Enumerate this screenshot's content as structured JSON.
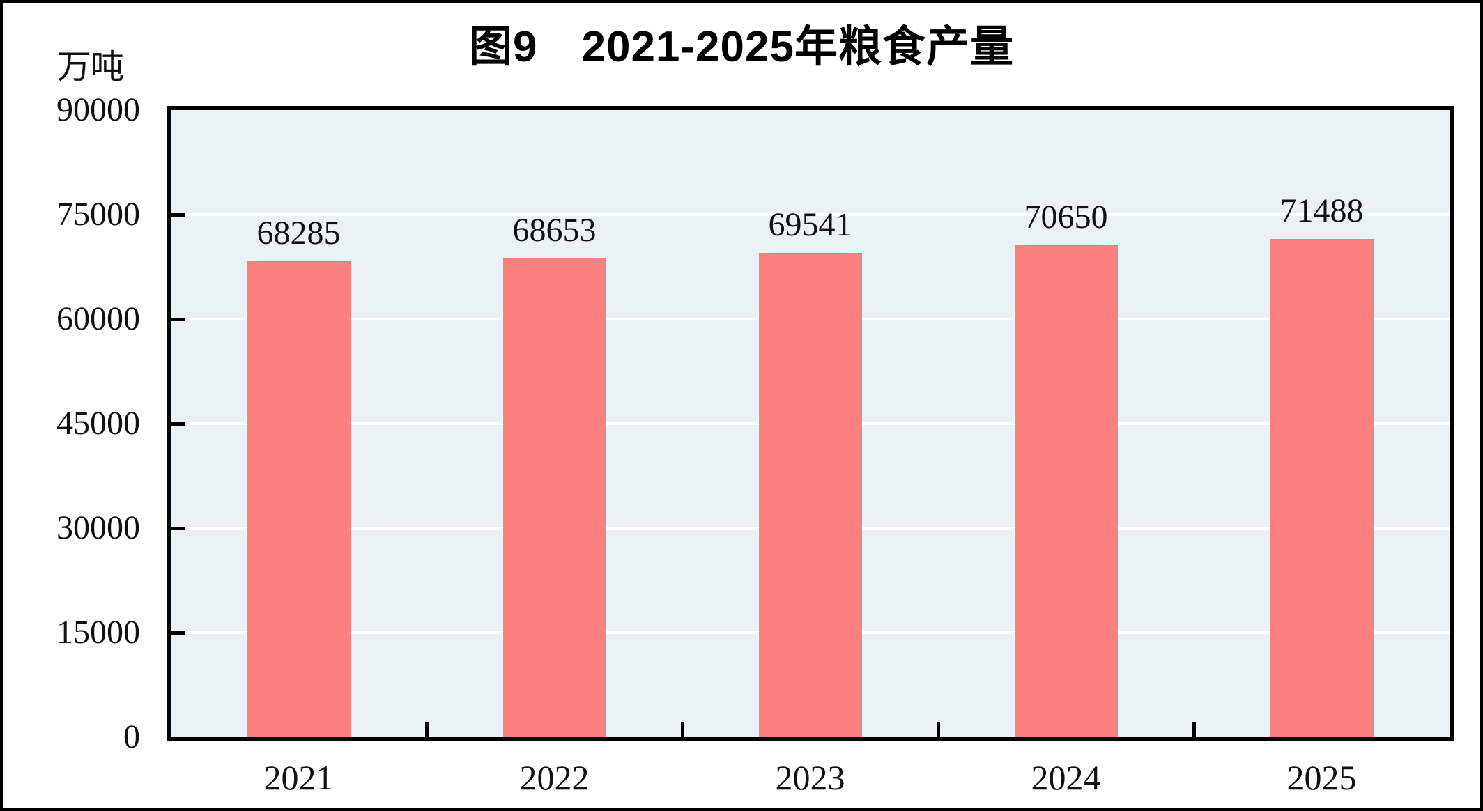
{
  "chart_data": {
    "type": "bar",
    "title": "图9　2021-2025年粮食产量",
    "unit_label": "万吨",
    "categories": [
      "2021",
      "2022",
      "2023",
      "2024",
      "2025"
    ],
    "values": [
      68285,
      68653,
      69541,
      70650,
      71488
    ],
    "xlabel": "",
    "ylabel": "万吨",
    "ylim": [
      0,
      90000
    ],
    "y_ticks": [
      0,
      15000,
      30000,
      45000,
      60000,
      75000,
      90000
    ],
    "grid": true,
    "legend_position": "none",
    "bar_color": "#FA8080",
    "plot_background": "#EAF2F5",
    "gridline_color": "#FFFFFF",
    "axis_color": "#000000",
    "text_color": "#111111"
  }
}
